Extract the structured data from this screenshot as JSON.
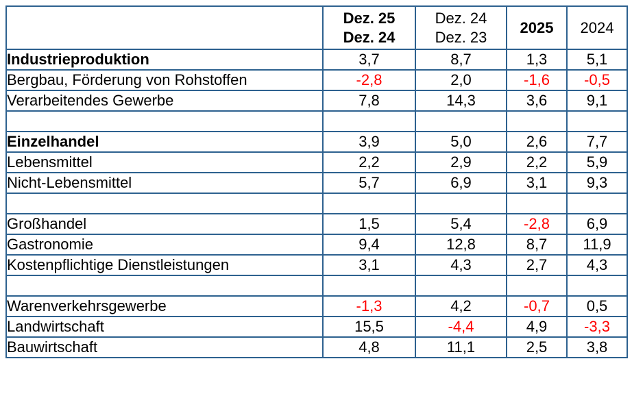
{
  "colors": {
    "border": "#2d618f",
    "text": "#000000",
    "negative": "#ff0000",
    "background": "#ffffff"
  },
  "table": {
    "header": {
      "label_col": "",
      "col_dez25_24": {
        "line1": "Dez. 25",
        "line2": "Dez. 24",
        "bold": true
      },
      "col_dez24_23": {
        "line1": "Dez. 24",
        "line2": "Dez. 23",
        "bold": false
      },
      "col_2025": {
        "label": "2025",
        "bold": true
      },
      "col_2024": {
        "label": "2024",
        "bold": false
      }
    },
    "rows": [
      {
        "label": "Industrieproduktion",
        "bold": true,
        "values": [
          "3,7",
          "8,7",
          "1,3",
          "5,1"
        ]
      },
      {
        "label": "Bergbau, Förderung von Rohstoffen",
        "bold": false,
        "values": [
          "-2,8",
          "2,0",
          "-1,6",
          "-0,5"
        ]
      },
      {
        "label": "Verarbeitendes Gewerbe",
        "bold": false,
        "values": [
          "7,8",
          "14,3",
          "3,6",
          "9,1"
        ]
      },
      {
        "label": "",
        "bold": false,
        "values": [
          "",
          "",
          "",
          ""
        ]
      },
      {
        "label": "Einzelhandel",
        "bold": true,
        "values": [
          "3,9",
          "5,0",
          "2,6",
          "7,7"
        ]
      },
      {
        "label": "Lebensmittel",
        "bold": false,
        "values": [
          "2,2",
          "2,9",
          "2,2",
          "5,9"
        ]
      },
      {
        "label": "Nicht-Lebensmittel",
        "bold": false,
        "values": [
          "5,7",
          "6,9",
          "3,1",
          "9,3"
        ]
      },
      {
        "label": "",
        "bold": false,
        "values": [
          "",
          "",
          "",
          ""
        ]
      },
      {
        "label": "Großhandel",
        "bold": false,
        "values": [
          "1,5",
          "5,4",
          "-2,8",
          "6,9"
        ]
      },
      {
        "label": "Gastronomie",
        "bold": false,
        "values": [
          "9,4",
          "12,8",
          "8,7",
          "11,9"
        ]
      },
      {
        "label": "Kostenpflichtige Dienstleistungen",
        "bold": false,
        "values": [
          "3,1",
          "4,3",
          "2,7",
          "4,3"
        ]
      },
      {
        "label": "",
        "bold": false,
        "values": [
          "",
          "",
          "",
          ""
        ]
      },
      {
        "label": "Warenverkehrsgewerbe",
        "bold": false,
        "values": [
          "-1,3",
          "4,2",
          "-0,7",
          "0,5"
        ]
      },
      {
        "label": "Landwirtschaft",
        "bold": false,
        "values": [
          "15,5",
          "-4,4",
          "4,9",
          "-3,3"
        ]
      },
      {
        "label": "Bauwirtschaft",
        "bold": false,
        "values": [
          "4,8",
          "11,1",
          "2,5",
          "3,8"
        ]
      }
    ]
  },
  "chart_data": {
    "type": "table",
    "title": "",
    "columns": [
      "",
      "Dez. 25 / Dez. 24",
      "Dez. 24 / Dez. 23",
      "2025",
      "2024"
    ],
    "rows": [
      {
        "label": "Industrieproduktion",
        "values": [
          3.7,
          8.7,
          1.3,
          5.1
        ]
      },
      {
        "label": "Bergbau, Förderung von Rohstoffen",
        "values": [
          -2.8,
          2.0,
          -1.6,
          -0.5
        ]
      },
      {
        "label": "Verarbeitendes Gewerbe",
        "values": [
          7.8,
          14.3,
          3.6,
          9.1
        ]
      },
      {
        "label": "Einzelhandel",
        "values": [
          3.9,
          5.0,
          2.6,
          7.7
        ]
      },
      {
        "label": "Lebensmittel",
        "values": [
          2.2,
          2.9,
          2.2,
          5.9
        ]
      },
      {
        "label": "Nicht-Lebensmittel",
        "values": [
          5.7,
          6.9,
          3.1,
          9.3
        ]
      },
      {
        "label": "Großhandel",
        "values": [
          1.5,
          5.4,
          -2.8,
          6.9
        ]
      },
      {
        "label": "Gastronomie",
        "values": [
          9.4,
          12.8,
          8.7,
          11.9
        ]
      },
      {
        "label": "Kostenpflichtige Dienstleistungen",
        "values": [
          3.1,
          4.3,
          2.7,
          4.3
        ]
      },
      {
        "label": "Warenverkehrsgewerbe",
        "values": [
          -1.3,
          4.2,
          -0.7,
          0.5
        ]
      },
      {
        "label": "Landwirtschaft",
        "values": [
          15.5,
          -4.4,
          4.9,
          -3.3
        ]
      },
      {
        "label": "Bauwirtschaft",
        "values": [
          4.8,
          11.1,
          2.5,
          3.8
        ]
      }
    ],
    "notes": "Negative values rendered in red; values are percent changes with German decimal commas"
  }
}
